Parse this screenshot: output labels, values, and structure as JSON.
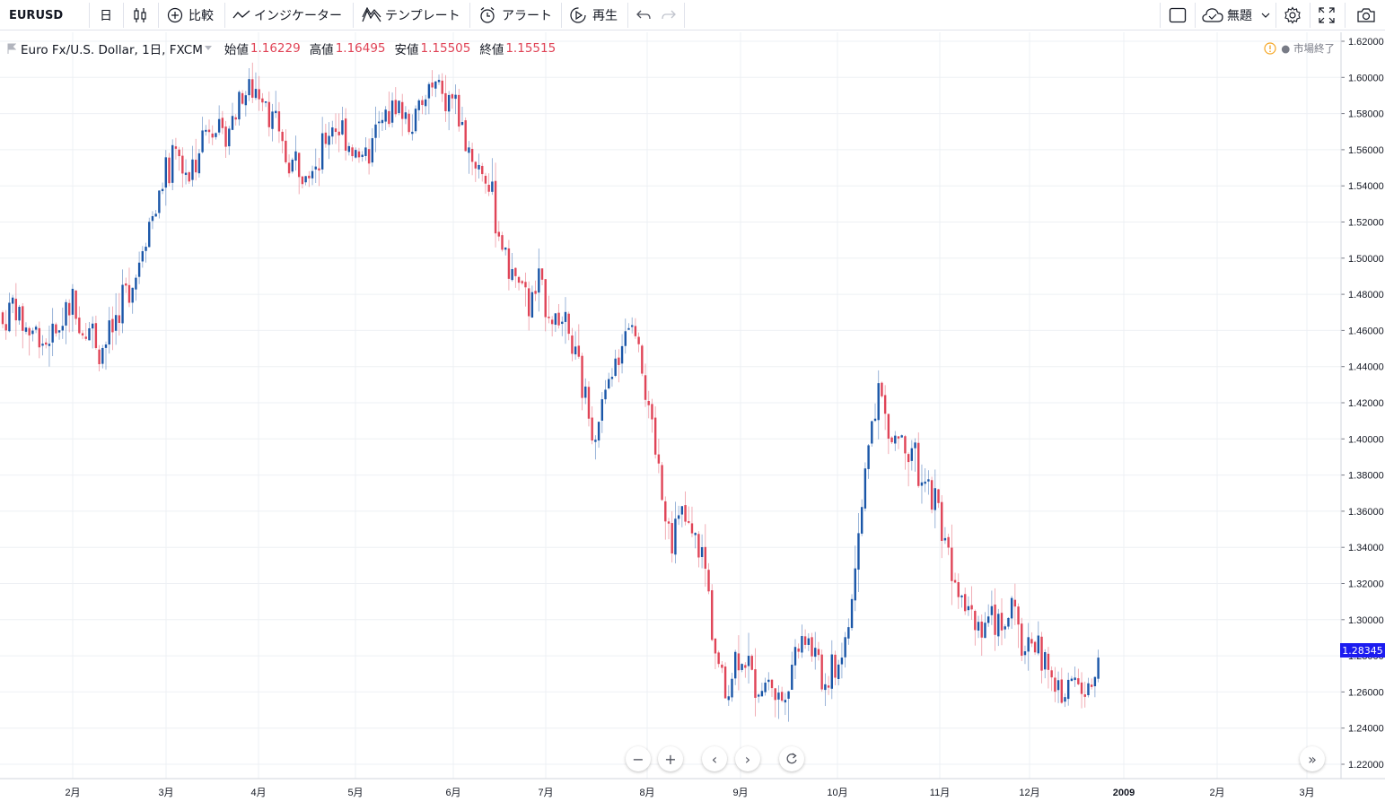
{
  "toolbar": {
    "symbol": "EURUSD",
    "interval": "日",
    "compare_label": "比較",
    "indicators_label": "インジケーター",
    "templates_label": "テンプレート",
    "alert_label": "アラート",
    "replay_label": "再生",
    "layout_label": "無題"
  },
  "legend": {
    "title": "Euro Fx/U.S. Dollar, 1日, FXCM",
    "open_label": "始値",
    "open_value": "1.16229",
    "high_label": "高値",
    "high_value": "1.16495",
    "low_label": "安値",
    "low_value": "1.15505",
    "close_label": "終値",
    "close_value": "1.15515"
  },
  "status": {
    "market_state": "● 市場終了"
  },
  "colors": {
    "up": "#1a56a8",
    "down": "#e04457",
    "grid": "#eef0f4",
    "price_tag": "#1c1cf0"
  },
  "chart_data": {
    "type": "candlestick",
    "ylim": [
      1.21,
      1.625
    ],
    "y_ticks": [
      "1.62000",
      "1.60000",
      "1.58000",
      "1.56000",
      "1.54000",
      "1.52000",
      "1.50000",
      "1.48000",
      "1.46000",
      "1.44000",
      "1.42000",
      "1.40000",
      "1.38000",
      "1.36000",
      "1.34000",
      "1.32000",
      "1.30000",
      "1.28000",
      "1.26000",
      "1.24000",
      "1.22000"
    ],
    "x_ticks": [
      "2月",
      "3月",
      "4月",
      "5月",
      "6月",
      "7月",
      "8月",
      "9月",
      "10月",
      "11月",
      "12月",
      "2009",
      "2月",
      "3月"
    ],
    "last_price": "1.28345",
    "anchors": [
      [
        1.47,
        1.455
      ],
      [
        1.48,
        1.473
      ],
      [
        1.45,
        1.472
      ],
      [
        1.465,
        1.455
      ],
      [
        1.445,
        1.463
      ],
      [
        1.468,
        1.453
      ],
      [
        1.487,
        1.475
      ],
      [
        1.471,
        1.462
      ],
      [
        1.46,
        1.462
      ],
      [
        1.445,
        1.454
      ],
      [
        1.471,
        1.45
      ],
      [
        1.483,
        1.48
      ],
      [
        1.493,
        1.48
      ],
      [
        1.521,
        1.51
      ],
      [
        1.535,
        1.52
      ],
      [
        1.551,
        1.548
      ],
      [
        1.563,
        1.549
      ],
      [
        1.548,
        1.54
      ],
      [
        1.57,
        1.56
      ],
      [
        1.584,
        1.569
      ],
      [
        1.563,
        1.572
      ],
      [
        1.575,
        1.576
      ],
      [
        1.592,
        1.589
      ],
      [
        1.597,
        1.593
      ],
      [
        1.581,
        1.597
      ],
      [
        1.567,
        1.569
      ],
      [
        1.551,
        1.556
      ],
      [
        1.547,
        1.56
      ],
      [
        1.548,
        1.554
      ],
      [
        1.555,
        1.56
      ],
      [
        1.58,
        1.568
      ],
      [
        1.576,
        1.568
      ],
      [
        1.549,
        1.569
      ],
      [
        1.545,
        1.557
      ],
      [
        1.575,
        1.562
      ],
      [
        1.58,
        1.578
      ],
      [
        1.592,
        1.584
      ],
      [
        1.575,
        1.57
      ],
      [
        1.578,
        1.58
      ],
      [
        1.594,
        1.593
      ],
      [
        1.592,
        1.587
      ],
      [
        1.592,
        1.585
      ],
      [
        1.568,
        1.573
      ],
      [
        1.559,
        1.551
      ],
      [
        1.545,
        1.547
      ],
      [
        1.524,
        1.521
      ],
      [
        1.495,
        1.499
      ],
      [
        1.485,
        1.487
      ],
      [
        1.47,
        1.474
      ],
      [
        1.488,
        1.483
      ],
      [
        1.47,
        1.473
      ],
      [
        1.46,
        1.467
      ],
      [
        1.448,
        1.452
      ],
      [
        1.422,
        1.43
      ],
      [
        1.404,
        1.407
      ],
      [
        1.425,
        1.421
      ],
      [
        1.448,
        1.44
      ],
      [
        1.463,
        1.467
      ],
      [
        1.461,
        1.455
      ],
      [
        1.409,
        1.41
      ],
      [
        1.377,
        1.38
      ],
      [
        1.35,
        1.346
      ],
      [
        1.357,
        1.359
      ],
      [
        1.343,
        1.344
      ],
      [
        1.335,
        1.332
      ],
      [
        1.279,
        1.289
      ],
      [
        1.26,
        1.252
      ],
      [
        1.285,
        1.28
      ],
      [
        1.273,
        1.277
      ],
      [
        1.26,
        1.262
      ],
      [
        1.266,
        1.27
      ],
      [
        1.257,
        1.25
      ],
      [
        1.274,
        1.278
      ],
      [
        1.3,
        1.29
      ],
      [
        1.283,
        1.282
      ],
      [
        1.266,
        1.26
      ],
      [
        1.274,
        1.273
      ],
      [
        1.284,
        1.29
      ],
      [
        1.333,
        1.338
      ],
      [
        1.397,
        1.4
      ],
      [
        1.43,
        1.43
      ],
      [
        1.396,
        1.398
      ],
      [
        1.403,
        1.402
      ],
      [
        1.393,
        1.401
      ],
      [
        1.372,
        1.37
      ],
      [
        1.369,
        1.374
      ],
      [
        1.348,
        1.346
      ],
      [
        1.32,
        1.326
      ],
      [
        1.314,
        1.31
      ],
      [
        1.298,
        1.299
      ],
      [
        1.3,
        1.299
      ],
      [
        1.298,
        1.298
      ],
      [
        1.305,
        1.306
      ],
      [
        1.284,
        1.283
      ],
      [
        1.286,
        1.292
      ],
      [
        1.278,
        1.275
      ],
      [
        1.264,
        1.256
      ],
      [
        1.261,
        1.264
      ],
      [
        1.268,
        1.265
      ],
      [
        1.258,
        1.26
      ],
      [
        1.283,
        1.285
      ]
    ]
  }
}
